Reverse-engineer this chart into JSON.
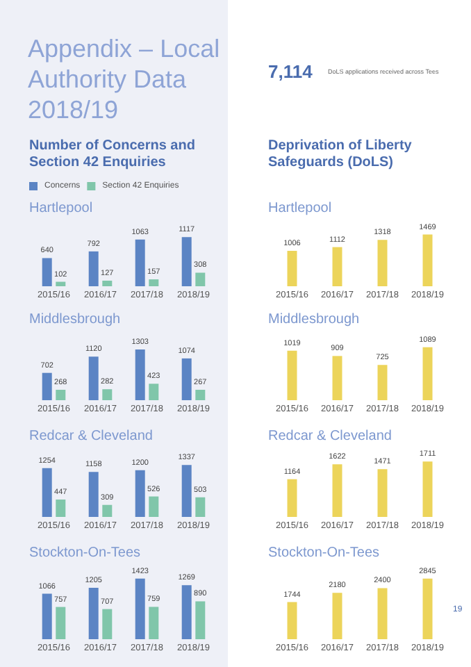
{
  "chart_data": [
    {
      "type": "other",
      "title": "Appendix – Local Authority Data 2018/19",
      "annotations": [
        "7,114",
        "DoLS applications received across Tees",
        "19"
      ]
    },
    {
      "type": "bar",
      "title": "Number of Concerns and Section 42 Enquiries",
      "subtitle": "Hartlepool",
      "categories": [
        "2015/16",
        "2016/17",
        "2017/18",
        "2018/19"
      ],
      "legend": "top left",
      "data_labels": true,
      "tick_labels": "x",
      "series": [
        {
          "name": "Concerns",
          "color": "#5b84c4",
          "values": [
            640,
            792,
            1063,
            1117
          ]
        },
        {
          "name": "Section 42 Enquiries",
          "color": "#80c6aa",
          "values": [
            102,
            127,
            157,
            308
          ]
        }
      ]
    },
    {
      "type": "bar",
      "title": "Middlesbrough",
      "categories": [
        "2015/16",
        "2016/17",
        "2017/18",
        "2018/19"
      ],
      "data_labels": true,
      "tick_labels": "x",
      "series": [
        {
          "color": "#5b84c4",
          "values": [
            702,
            1120,
            1303,
            1074
          ]
        },
        {
          "color": "#80c6aa",
          "values": [
            268,
            282,
            423,
            267
          ]
        }
      ]
    },
    {
      "type": "bar",
      "title": "Redcar & Cleveland",
      "categories": [
        "2015/16",
        "2016/17",
        "2017/18",
        "2018/19"
      ],
      "data_labels": true,
      "tick_labels": "x",
      "series": [
        {
          "color": "#5b84c4",
          "values": [
            1254,
            1158,
            1200,
            1337
          ]
        },
        {
          "color": "#80c6aa",
          "values": [
            447,
            309,
            526,
            503
          ]
        }
      ]
    },
    {
      "type": "bar",
      "title": "Stockton-On-Tees",
      "categories": [
        "2015/16",
        "2016/17",
        "2017/18",
        "2018/19"
      ],
      "data_labels": true,
      "tick_labels": "x",
      "series": [
        {
          "color": "#5b84c4",
          "values": [
            1066,
            1205,
            1423,
            1269
          ]
        },
        {
          "color": "#80c6aa",
          "values": [
            757,
            707,
            759,
            890
          ]
        }
      ]
    },
    {
      "type": "bar",
      "title": "Deprivation of Liberty Safeguards (DoLS)",
      "subtitle": "Hartlepool",
      "categories": [
        "2015/16",
        "2016/17",
        "2017/18",
        "2018/19"
      ],
      "data_labels": true,
      "tick_labels": "x",
      "series": [
        {
          "color": "#ecd45a",
          "values": [
            1006,
            1112,
            1318,
            1469
          ]
        }
      ]
    },
    {
      "type": "bar",
      "title": "Middlesbrough",
      "categories": [
        "2015/16",
        "2016/17",
        "2017/18",
        "2018/19"
      ],
      "data_labels": true,
      "tick_labels": "x",
      "series": [
        {
          "color": "#ecd45a",
          "values": [
            1019,
            909,
            725,
            1089
          ]
        }
      ]
    },
    {
      "type": "bar",
      "title": "Redcar & Cleveland",
      "categories": [
        "2015/16",
        "2016/17",
        "2017/18",
        "2018/19"
      ],
      "data_labels": true,
      "tick_labels": "x",
      "series": [
        {
          "color": "#ecd45a",
          "values": [
            1164,
            1622,
            1471,
            1711
          ]
        }
      ]
    },
    {
      "type": "bar",
      "title": "Stockton-On-Tees",
      "categories": [
        "2015/16",
        "2016/17",
        "2017/18",
        "2018/19"
      ],
      "data_labels": true,
      "tick_labels": "x",
      "series": [
        {
          "color": "#ecd45a",
          "values": [
            1744,
            2180,
            2400,
            2845
          ]
        }
      ]
    }
  ]
}
